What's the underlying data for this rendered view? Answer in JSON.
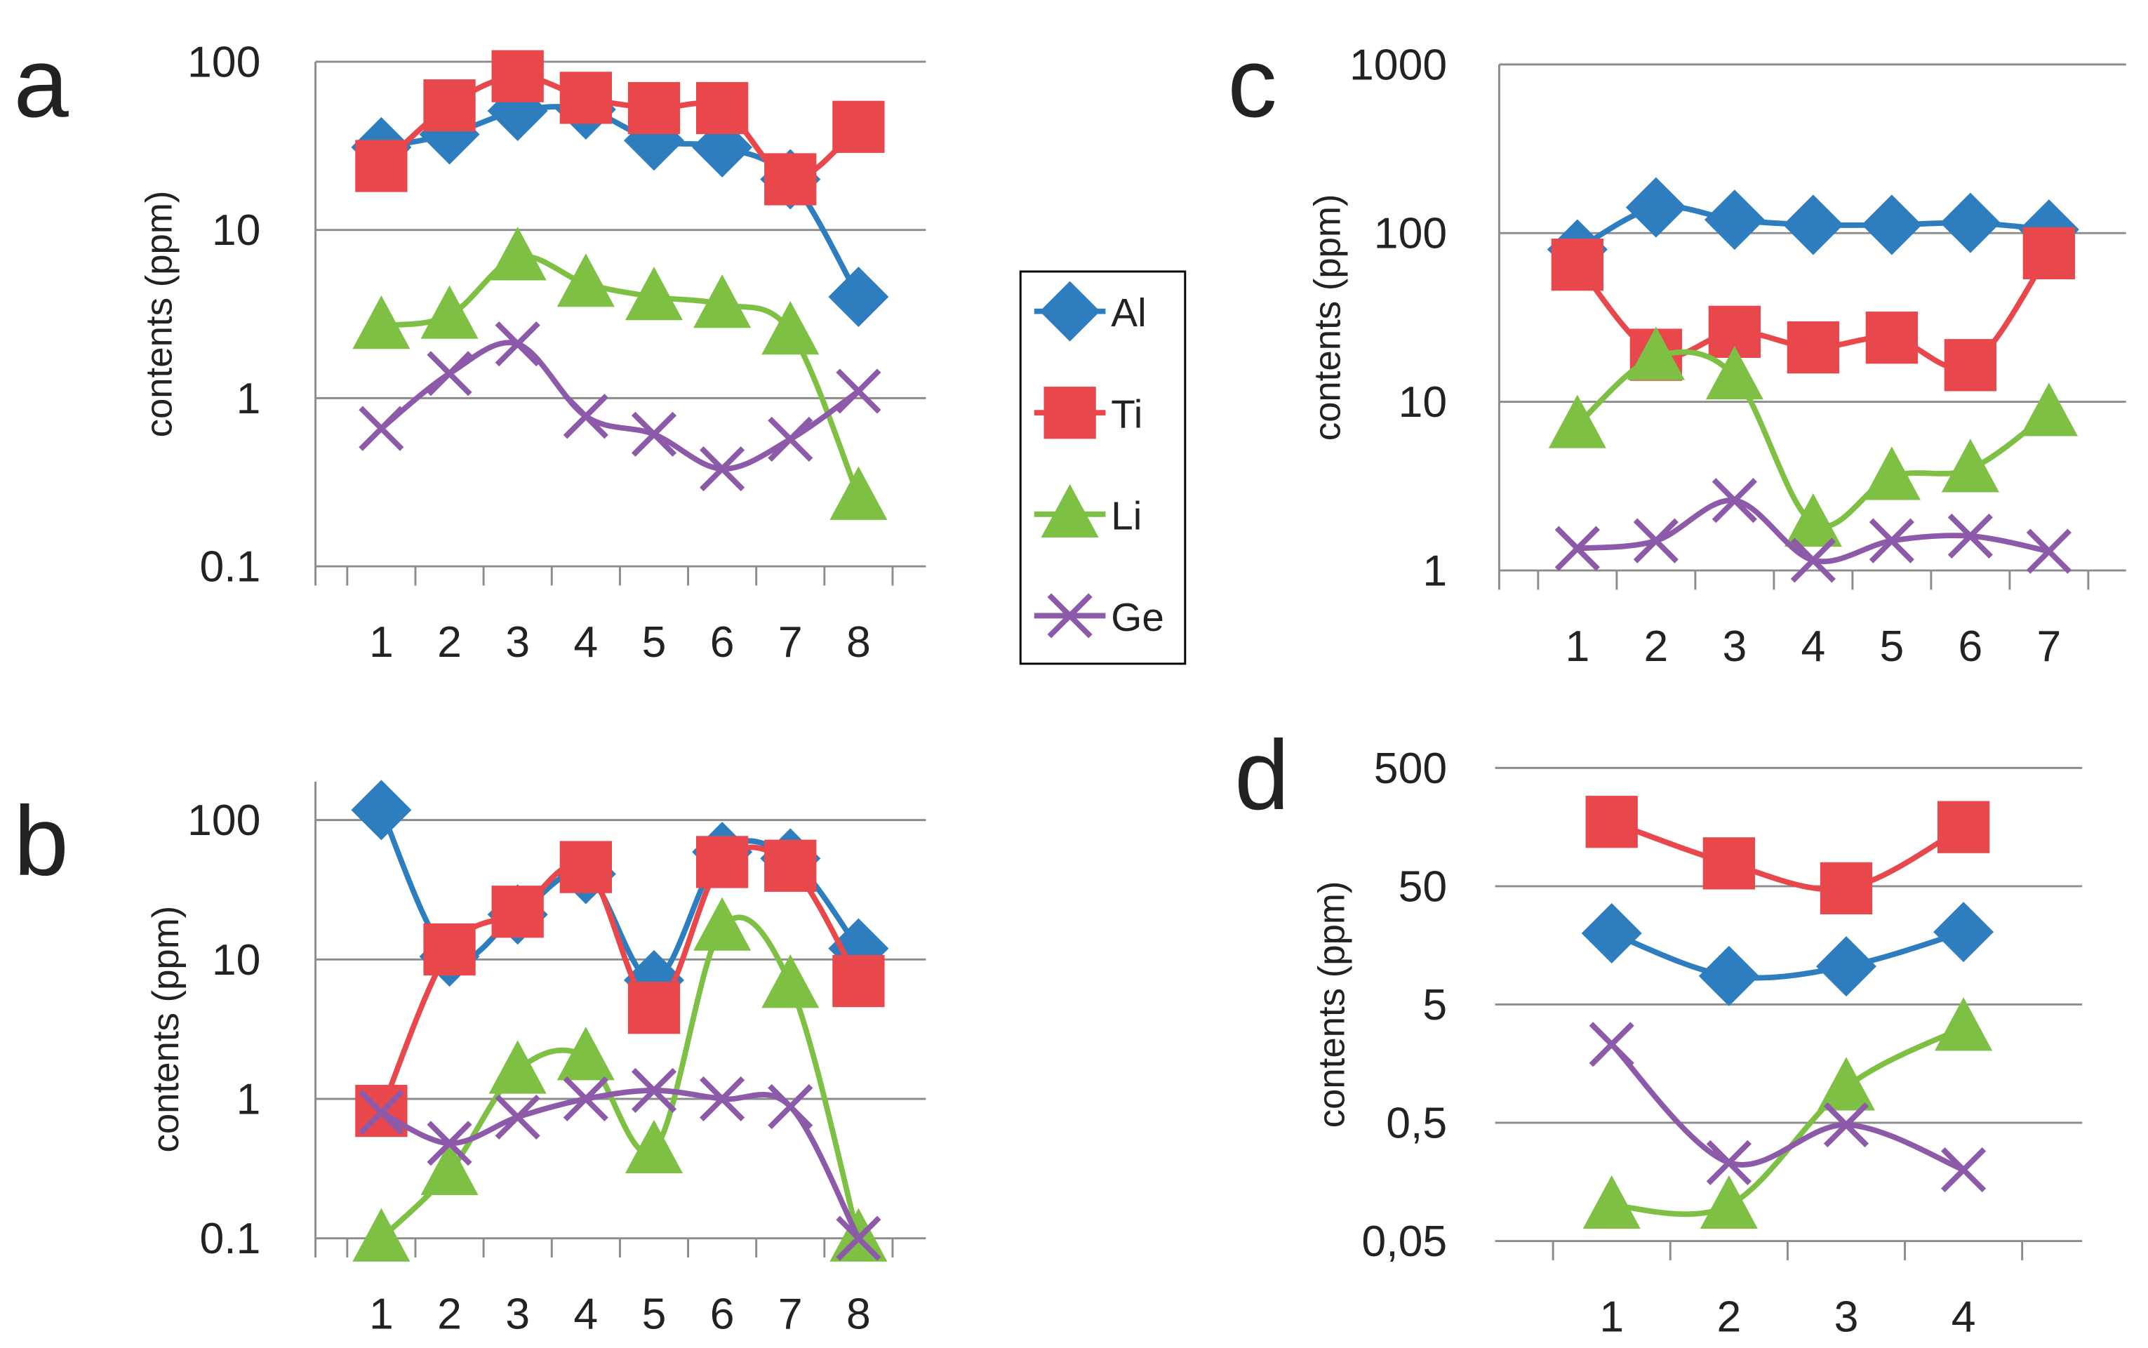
{
  "colors": {
    "Al": "#2e7ebf",
    "Ti": "#e8474b",
    "Li": "#7dc043",
    "Ge": "#8c5aa9"
  },
  "legend": [
    {
      "name": "Al",
      "marker": "diamond-icon"
    },
    {
      "name": "Ti",
      "marker": "square-icon"
    },
    {
      "name": "Li",
      "marker": "triangle-icon"
    },
    {
      "name": "Ge",
      "marker": "cross-icon"
    }
  ],
  "chart_data": [
    {
      "panel": "a",
      "type": "line",
      "yscale": "log",
      "ylabel": "contents (ppm)",
      "yticks": [
        0.1,
        1,
        10,
        100
      ],
      "ytick_labels": [
        "0.1",
        "1",
        "10",
        "100"
      ],
      "categories": [
        "1",
        "2",
        "3",
        "4",
        "5",
        "6",
        "7",
        "8"
      ],
      "series": [
        {
          "name": "Al",
          "values": [
            31,
            37,
            51,
            52,
            34,
            31,
            20,
            4
          ]
        },
        {
          "name": "Ti",
          "values": [
            24,
            55,
            82,
            61,
            53,
            53,
            20,
            41
          ]
        },
        {
          "name": "Li",
          "values": [
            2.7,
            3.1,
            6.9,
            4.8,
            4.0,
            3.6,
            2.5,
            0.26
          ]
        },
        {
          "name": "Ge",
          "values": [
            0.66,
            1.4,
            2.1,
            0.78,
            0.61,
            0.38,
            0.57,
            1.1
          ]
        }
      ]
    },
    {
      "panel": "b",
      "type": "line",
      "yscale": "log",
      "ylabel": "contents (ppm)",
      "yticks": [
        0.1,
        1,
        10,
        100
      ],
      "ytick_labels": [
        "0.1",
        "1",
        "10",
        "100"
      ],
      "categories": [
        "1",
        "2",
        "3",
        "4",
        "5",
        "6",
        "7",
        "8"
      ],
      "series": [
        {
          "name": "Al",
          "values": [
            118,
            10.5,
            21,
            41,
            7.1,
            59,
            53,
            12
          ]
        },
        {
          "name": "Ti",
          "values": [
            0.82,
            11.8,
            22,
            46,
            4.5,
            50,
            47,
            7
          ]
        },
        {
          "name": "Li",
          "values": [
            0.1,
            0.3,
            1.6,
            2.0,
            0.43,
            17,
            6.6,
            0.1
          ]
        },
        {
          "name": "Ge",
          "values": [
            0.8,
            0.48,
            0.74,
            1.0,
            1.15,
            1.0,
            0.88,
            0.1
          ]
        }
      ]
    },
    {
      "panel": "c",
      "type": "line",
      "yscale": "log",
      "ylabel": "contents (ppm)",
      "yticks": [
        1,
        10,
        100,
        1000
      ],
      "ytick_labels": [
        "1",
        "10",
        "100",
        "1000"
      ],
      "categories": [
        "1",
        "2",
        "3",
        "4",
        "5",
        "6",
        "7"
      ],
      "series": [
        {
          "name": "Al",
          "values": [
            80,
            142,
            120,
            112,
            112,
            115,
            105
          ]
        },
        {
          "name": "Ti",
          "values": [
            65,
            19,
            26,
            21,
            24,
            16.5,
            76
          ]
        },
        {
          "name": "Li",
          "values": [
            7.3,
            18.5,
            14.2,
            1.9,
            3.6,
            4.0,
            8.6
          ]
        },
        {
          "name": "Ge",
          "values": [
            1.35,
            1.5,
            2.6,
            1.15,
            1.5,
            1.6,
            1.3
          ]
        }
      ]
    },
    {
      "panel": "d",
      "type": "line",
      "yscale": "log",
      "ylabel": "contents (ppm)",
      "yticks": [
        0.05,
        0.5,
        5,
        50,
        500
      ],
      "ytick_labels": [
        "0,05",
        "0,5",
        "5",
        "50",
        "500"
      ],
      "categories": [
        "1",
        "2",
        "3",
        "4"
      ],
      "series": [
        {
          "name": "Al",
          "values": [
            20,
            8.7,
            10.5,
            20.5
          ]
        },
        {
          "name": "Ti",
          "values": [
            175,
            78,
            48,
            158
          ]
        },
        {
          "name": "Li",
          "values": [
            0.1,
            0.1,
            1.0,
            3.2
          ]
        },
        {
          "name": "Ge",
          "values": [
            2.3,
            0.23,
            0.48,
            0.2
          ]
        }
      ]
    }
  ]
}
